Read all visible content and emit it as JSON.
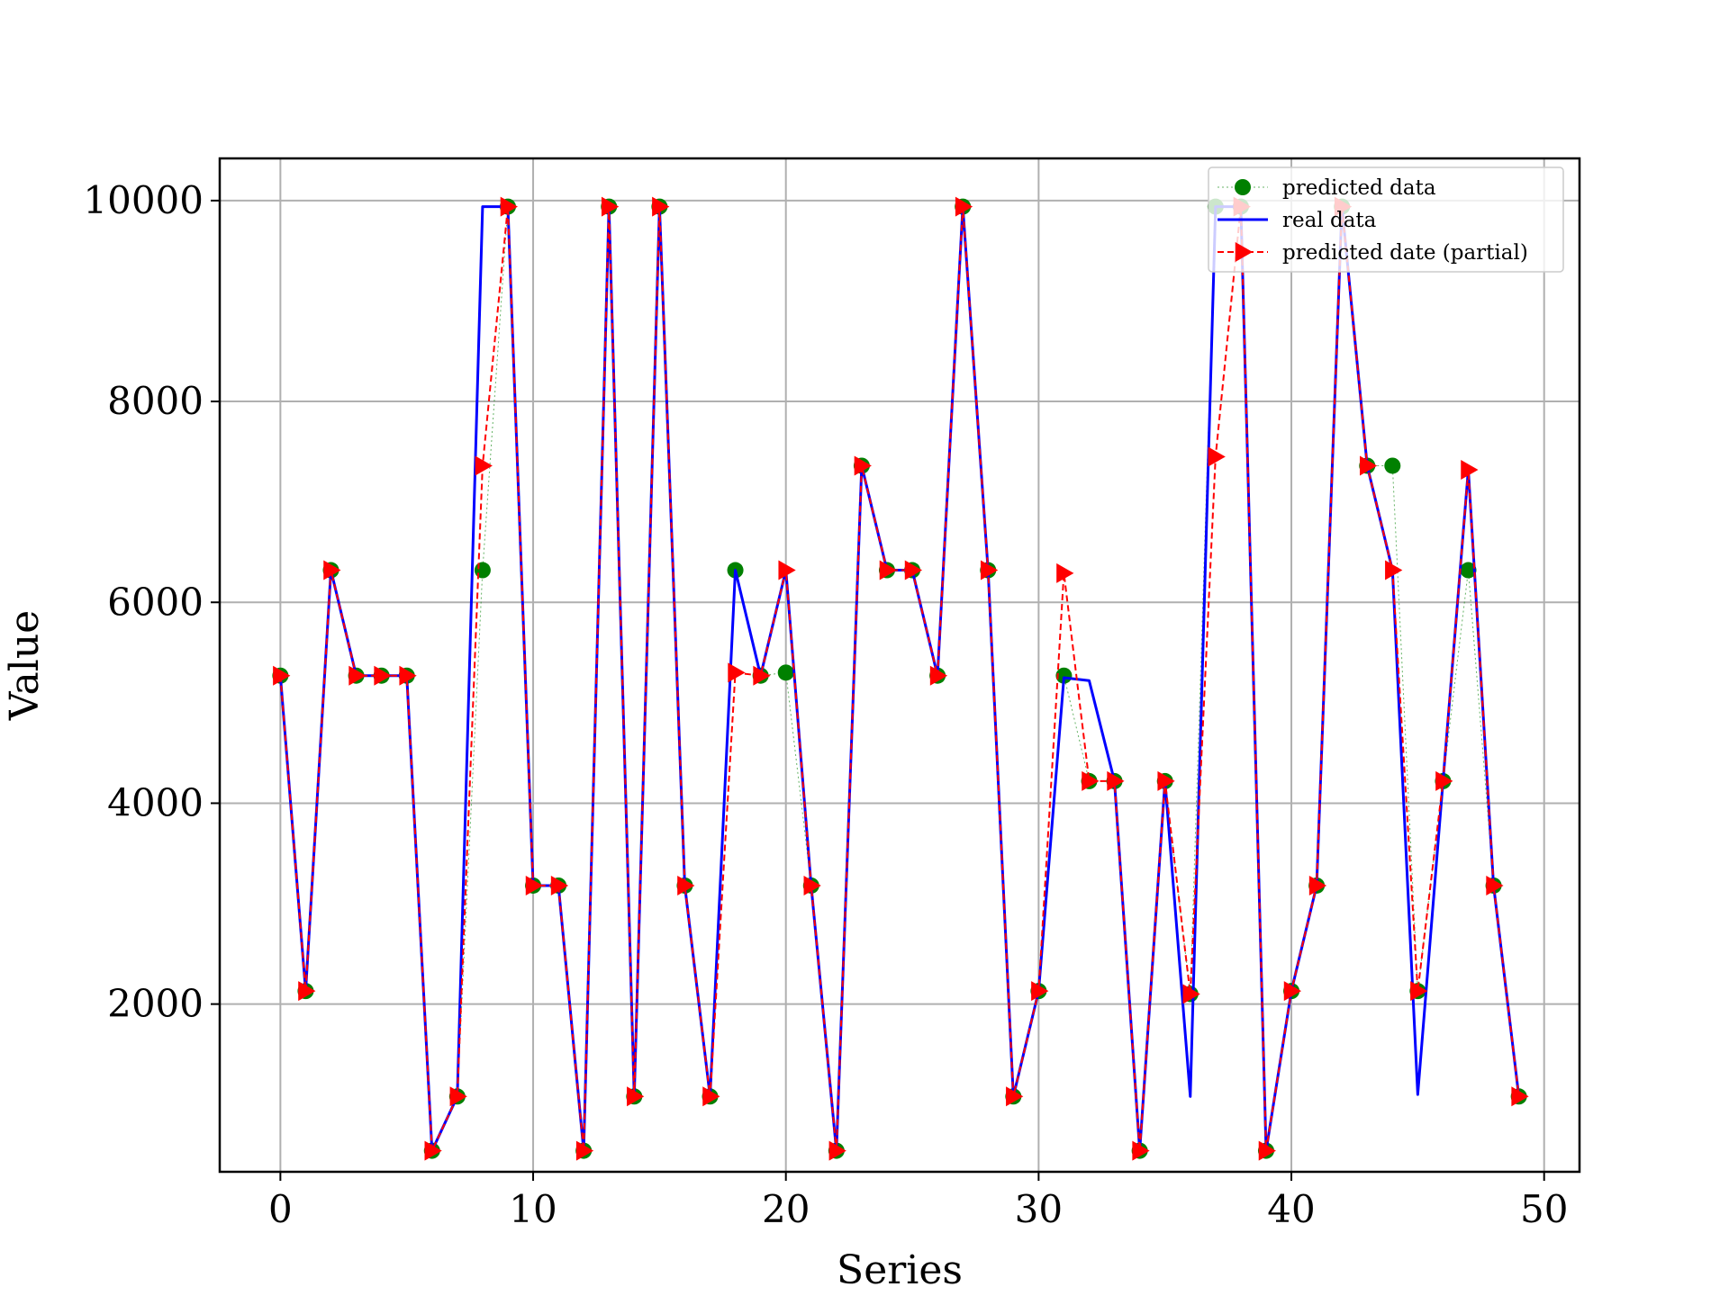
{
  "chart_data": {
    "type": "line",
    "title": "",
    "xlabel": "Series",
    "ylabel": "Value",
    "xlim": [
      -2.4,
      51.4
    ],
    "ylim": [
      330,
      10420
    ],
    "xticks": [
      0,
      10,
      20,
      30,
      40,
      50
    ],
    "yticks": [
      2000,
      4000,
      6000,
      8000,
      10000
    ],
    "grid": true,
    "legend_position": "top-right",
    "series": [
      {
        "name": "predicted data",
        "style": "dotted-line-circle-markers",
        "color": "#008000",
        "values": [
          5270,
          2130,
          6320,
          5270,
          5270,
          5270,
          540,
          1080,
          6320,
          9940,
          3180,
          3180,
          540,
          9940,
          1080,
          9940,
          3180,
          1080,
          6320,
          5270,
          5300,
          3180,
          540,
          7360,
          6320,
          6320,
          5270,
          9940,
          6320,
          1080,
          2130,
          5270,
          4220,
          4220,
          540,
          4220,
          2100,
          9940,
          9940,
          540,
          2130,
          3180,
          9940,
          7360,
          7360,
          2130,
          4220,
          6320,
          3180,
          1080
        ]
      },
      {
        "name": "real data",
        "style": "solid-line",
        "color": "#0000ff",
        "values": [
          5270,
          2130,
          6320,
          5270,
          5270,
          5270,
          540,
          1080,
          9940,
          9940,
          3180,
          3180,
          540,
          9940,
          1080,
          9940,
          3180,
          1080,
          6320,
          5270,
          6320,
          3180,
          540,
          7360,
          6320,
          6320,
          5270,
          9940,
          6320,
          1080,
          2130,
          5250,
          5220,
          4220,
          540,
          4220,
          1080,
          9940,
          9940,
          540,
          2130,
          3180,
          9940,
          7360,
          6320,
          1100,
          4220,
          7320,
          3180,
          1080
        ]
      },
      {
        "name": "predicted date (partial)",
        "style": "dashed-line-triangle-markers",
        "color": "#ff0000",
        "values": [
          5270,
          2130,
          6320,
          5270,
          5270,
          5270,
          540,
          1080,
          7360,
          9940,
          3180,
          3180,
          540,
          9940,
          1080,
          9940,
          3180,
          1080,
          5300,
          5270,
          6320,
          3180,
          540,
          7360,
          6320,
          6320,
          5270,
          9940,
          6320,
          1080,
          2130,
          6290,
          4220,
          4220,
          540,
          4220,
          2100,
          7450,
          9940,
          540,
          2130,
          3180,
          9940,
          7360,
          6320,
          2130,
          4220,
          7320,
          3180,
          1080
        ]
      }
    ]
  }
}
